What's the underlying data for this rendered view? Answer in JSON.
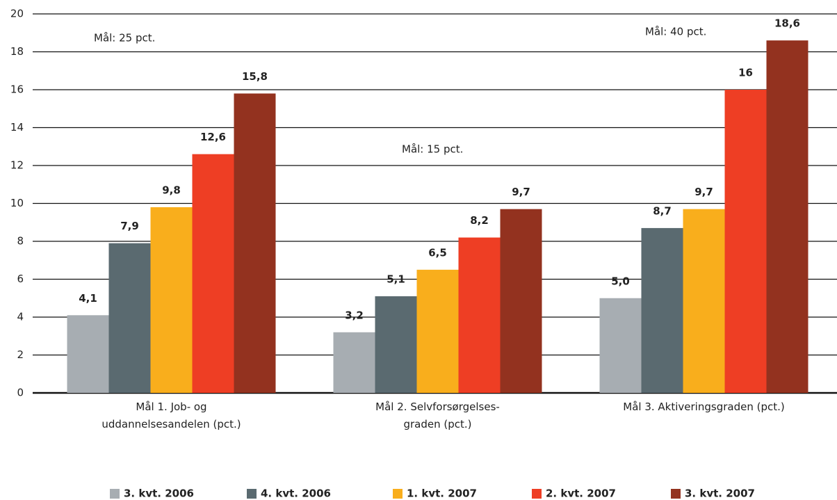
{
  "chart_data": {
    "type": "bar",
    "categories": [
      "Mål 1. Job- og\nuddannelsesandelen (pct.)",
      "Mål 2. Selvforsørgelses-\ngraden (pct.)",
      "Mål 3. Aktiveringsgraden (pct.)"
    ],
    "series": [
      {
        "name": "3. kvt. 2006",
        "color": "#a7adb2",
        "values": [
          4.1,
          3.2,
          5.0
        ],
        "value_labels": [
          "4,1",
          "3,2",
          "5,0"
        ]
      },
      {
        "name": "4. kvt. 2006",
        "color": "#5a6a70",
        "values": [
          7.9,
          5.1,
          8.7
        ],
        "value_labels": [
          "7,9",
          "5,1",
          "8,7"
        ]
      },
      {
        "name": "1. kvt. 2007",
        "color": "#f9ae1c",
        "values": [
          9.8,
          6.5,
          9.7
        ],
        "value_labels": [
          "9,8",
          "6,5",
          "9,7"
        ]
      },
      {
        "name": "2. kvt. 2007",
        "color": "#ee3e24",
        "values": [
          12.6,
          8.2,
          16
        ],
        "value_labels": [
          "12,6",
          "8,2",
          "16"
        ]
      },
      {
        "name": "3. kvt. 2007",
        "color": "#93321f",
        "values": [
          15.8,
          9.7,
          18.6
        ],
        "value_labels": [
          "15,8",
          "9,7",
          "18,6"
        ]
      }
    ],
    "annotations": [
      "Mål: 25 pct.",
      "Mål: 15 pct.",
      "Mål: 40 pct."
    ],
    "ylim": [
      0,
      20
    ],
    "yticks": [
      0,
      2,
      4,
      6,
      8,
      10,
      12,
      14,
      16,
      18,
      20
    ],
    "grid": true,
    "legend": "bottom"
  }
}
